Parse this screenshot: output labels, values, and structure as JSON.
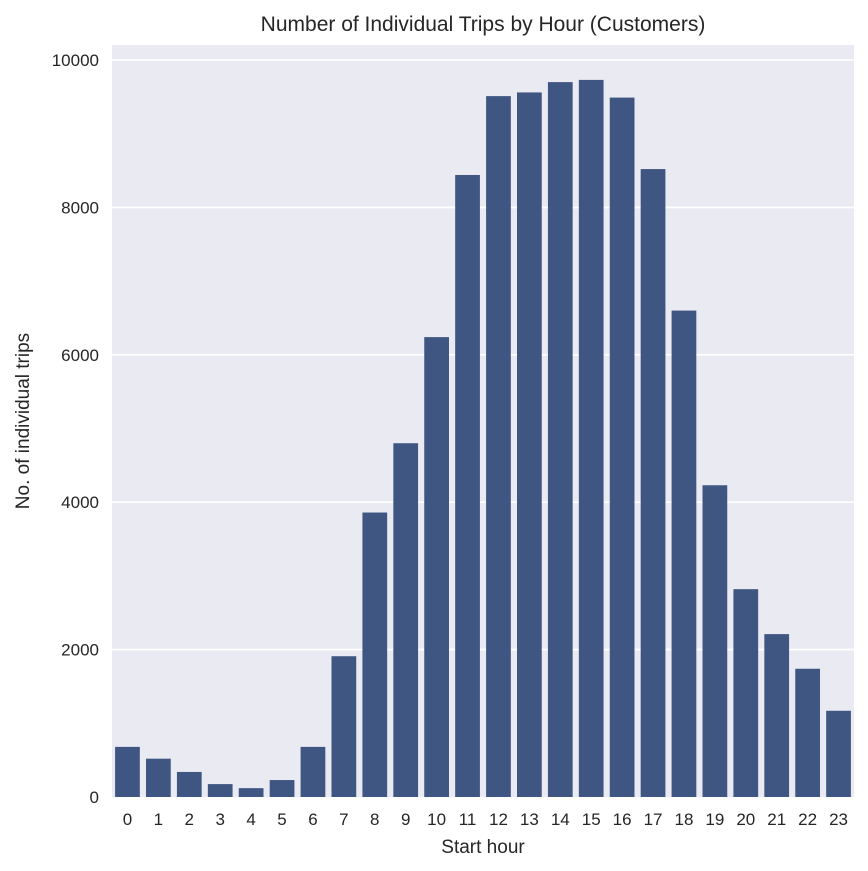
{
  "chart_data": {
    "type": "bar",
    "title": "Number of Individual Trips by Hour (Customers)",
    "xlabel": "Start hour",
    "ylabel": "No. of individual trips",
    "categories": [
      "0",
      "1",
      "2",
      "3",
      "4",
      "5",
      "6",
      "7",
      "8",
      "9",
      "10",
      "11",
      "12",
      "13",
      "14",
      "15",
      "16",
      "17",
      "18",
      "19",
      "20",
      "21",
      "22",
      "23"
    ],
    "values": [
      680,
      520,
      340,
      175,
      120,
      230,
      680,
      1910,
      3860,
      4800,
      6240,
      8440,
      9510,
      9560,
      9700,
      9730,
      9490,
      8520,
      6600,
      4230,
      2820,
      2210,
      1740,
      1170
    ],
    "ylim": [
      0,
      10200
    ],
    "yticks": [
      0,
      2000,
      4000,
      6000,
      8000,
      10000
    ],
    "ytick_labels": [
      "0",
      "2000",
      "4000",
      "6000",
      "8000",
      "10000"
    ],
    "grid": true,
    "colors": {
      "bar": "#3f5582",
      "background": "#eaeaf2",
      "grid": "#ffffff"
    }
  }
}
